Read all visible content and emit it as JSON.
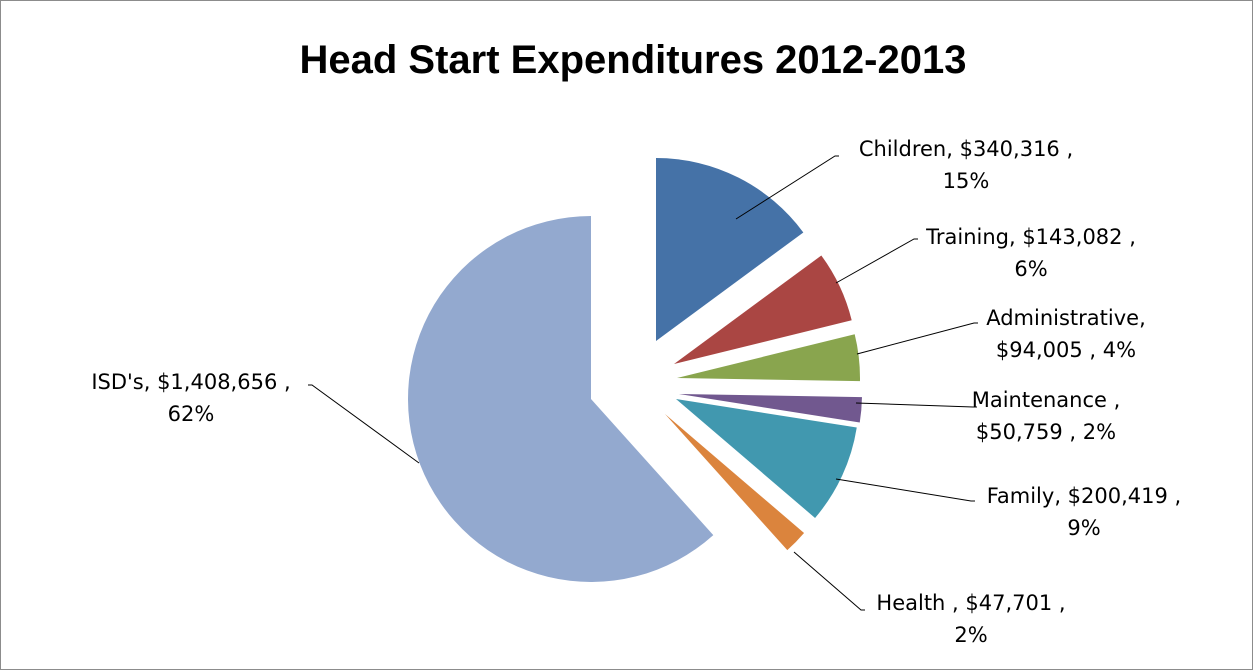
{
  "chart_data": {
    "type": "pie",
    "title": "Head Start Expenditures 2012-2013",
    "slices": [
      {
        "label": "Children",
        "value": 340316,
        "value_text": "$340,316",
        "percent": "15%",
        "color": "#4572a7",
        "label_line1": "Children,  $340,316 ,",
        "label_line2": "15%"
      },
      {
        "label": "Training",
        "value": 143082,
        "value_text": "$143,082",
        "percent": "6%",
        "color": "#aa4643",
        "label_line1": "Training,  $143,082 ,",
        "label_line2": "6%"
      },
      {
        "label": "Administrative",
        "value": 94005,
        "value_text": "$94,005",
        "percent": "4%",
        "color": "#89a54e",
        "label_line1": "Administrative,",
        "label_line2": "$94,005 , 4%"
      },
      {
        "label": "Maintenance",
        "value": 50759,
        "value_text": "$50,759",
        "percent": "2%",
        "color": "#71588f",
        "label_line1": "Maintenance ,",
        "label_line2": "$50,759 , 2%"
      },
      {
        "label": "Family",
        "value": 200419,
        "value_text": "$200,419",
        "percent": "9%",
        "color": "#4198af",
        "label_line1": "Family,  $200,419 ,",
        "label_line2": "9%"
      },
      {
        "label": "Health",
        "value": 47701,
        "value_text": "$47,701",
        "percent": "2%",
        "color": "#db843d",
        "label_line1": "Health ,  $47,701 ,",
        "label_line2": "2%"
      },
      {
        "label": "ISD's",
        "value": 1408656,
        "value_text": "$1,408,656",
        "percent": "62%",
        "color": "#93a9cf",
        "label_line1": "ISD's,  $1,408,656 ,",
        "label_line2": "62%"
      }
    ],
    "legend": "none",
    "data_labels": "outside-with-leader-lines"
  }
}
